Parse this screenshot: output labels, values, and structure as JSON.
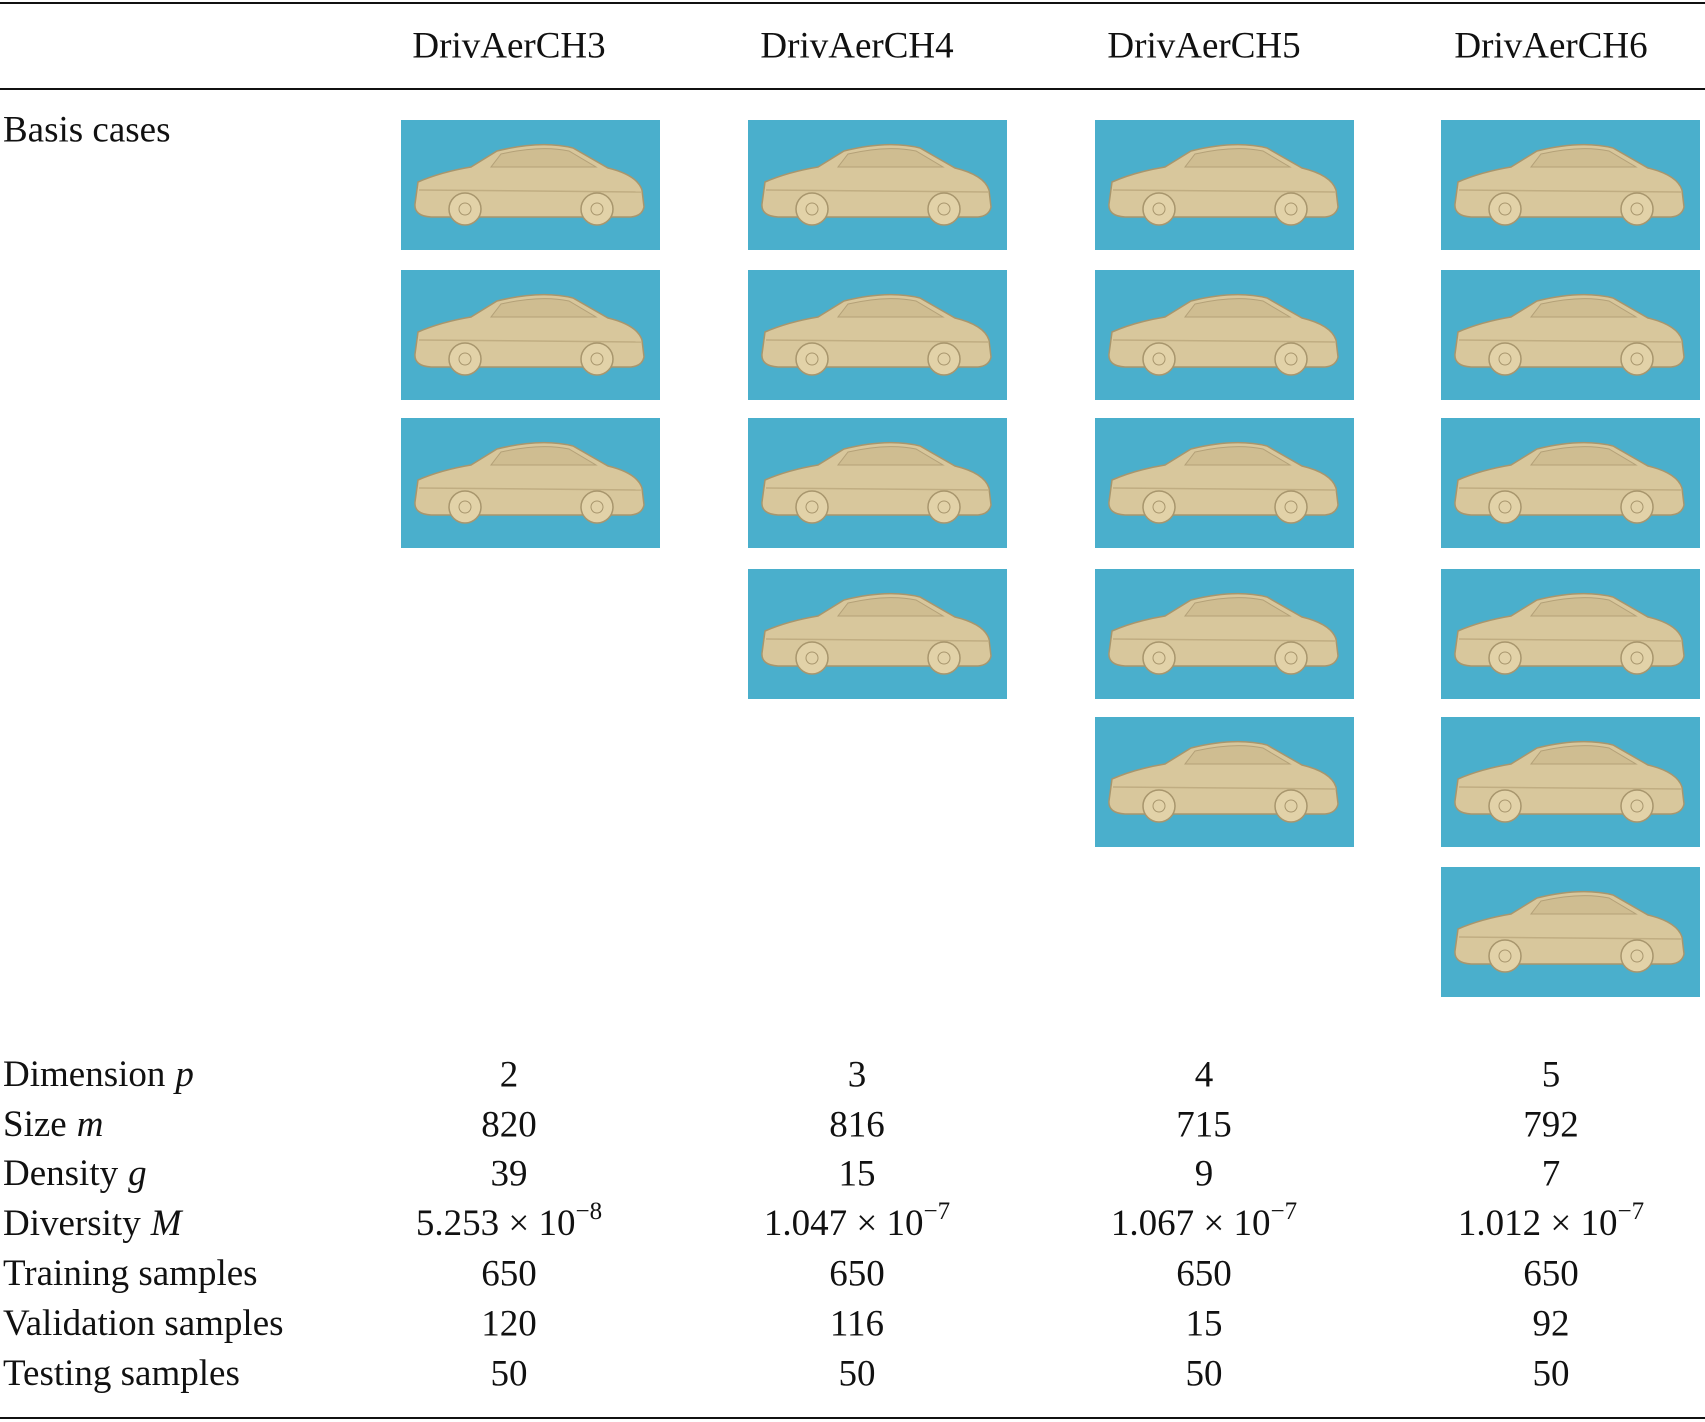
{
  "table": {
    "columns": [
      "DrivAerCH3",
      "DrivAerCH4",
      "DrivAerCH5",
      "DrivAerCH6"
    ],
    "basis_label": "Basis cases",
    "rows": [
      {
        "label": {
          "text": "Dimension",
          "symbol": "p"
        },
        "cells": [
          2,
          3,
          4,
          5
        ]
      },
      {
        "label": {
          "text": "Size",
          "symbol": "m"
        },
        "cells": [
          820,
          816,
          715,
          792
        ]
      },
      {
        "label": {
          "text": "Density",
          "symbol": "g"
        },
        "cells": [
          39,
          15,
          9,
          7
        ]
      },
      {
        "label": {
          "text": "Diversity",
          "symbol": "M"
        },
        "cells": [
          {
            "base": "5.253 × 10",
            "exp": "−8"
          },
          {
            "base": "1.047 × 10",
            "exp": "−7"
          },
          {
            "base": "1.067 × 10",
            "exp": "−7"
          },
          {
            "base": "1.012 × 10",
            "exp": "−7"
          }
        ]
      },
      {
        "label": {
          "text": "Training samples"
        },
        "cells": [
          650,
          650,
          650,
          650
        ]
      },
      {
        "label": {
          "text": "Validation samples"
        },
        "cells": [
          120,
          116,
          15,
          92
        ]
      },
      {
        "label": {
          "text": "Testing samples"
        },
        "cells": [
          50,
          50,
          50,
          50
        ]
      }
    ]
  }
}
